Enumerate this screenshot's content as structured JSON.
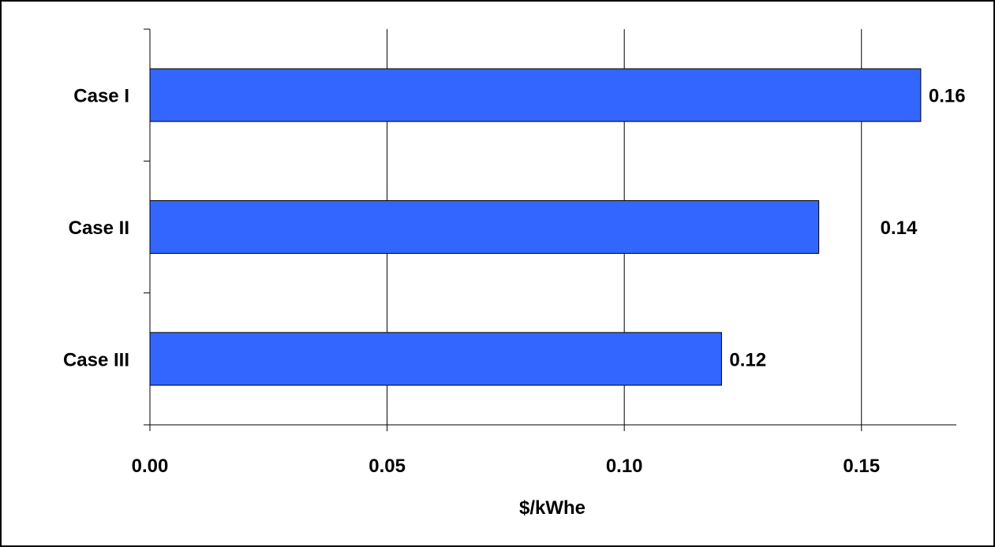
{
  "chart_data": {
    "type": "bar",
    "orientation": "horizontal",
    "categories": [
      "Case I",
      "Case II",
      "Case III"
    ],
    "values": [
      0.1625,
      0.141,
      0.1205
    ],
    "data_labels": [
      "0.16",
      "0.14",
      "0.12"
    ],
    "xlabel": "$/kWhe",
    "ylabel": "",
    "xlim": [
      0,
      0.17
    ],
    "x_ticks": [
      0,
      0.05,
      0.1,
      0.15
    ],
    "x_tick_labels": [
      "0.00",
      "0.05",
      "0.10",
      "0.15"
    ],
    "grid": "vertical",
    "legend": "none",
    "colors": {
      "bar_fill": "#3366FF",
      "bar_stroke": "#000000",
      "grid": "#000000",
      "frame": "#000000"
    }
  }
}
